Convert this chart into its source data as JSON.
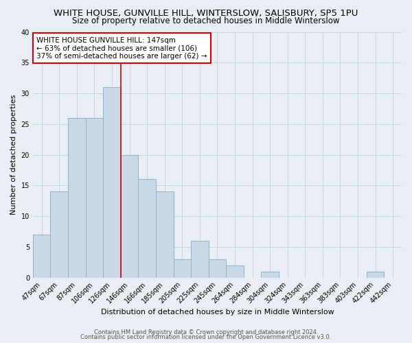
{
  "title": "WHITE HOUSE, GUNVILLE HILL, WINTERSLOW, SALISBURY, SP5 1PU",
  "subtitle": "Size of property relative to detached houses in Middle Winterslow",
  "xlabel": "Distribution of detached houses by size in Middle Winterslow",
  "ylabel": "Number of detached properties",
  "bar_labels": [
    "47sqm",
    "67sqm",
    "87sqm",
    "106sqm",
    "126sqm",
    "146sqm",
    "166sqm",
    "185sqm",
    "205sqm",
    "225sqm",
    "245sqm",
    "264sqm",
    "284sqm",
    "304sqm",
    "324sqm",
    "343sqm",
    "363sqm",
    "383sqm",
    "403sqm",
    "422sqm",
    "442sqm"
  ],
  "bar_heights": [
    7,
    14,
    26,
    26,
    31,
    20,
    16,
    14,
    3,
    6,
    3,
    2,
    0,
    1,
    0,
    0,
    0,
    0,
    0,
    1,
    0
  ],
  "bar_color": "#c9d9e8",
  "bar_edge_color": "#8ab4cc",
  "vline_index": 5,
  "vline_color": "#cc0000",
  "annotation_line1": "WHITE HOUSE GUNVILLE HILL: 147sqm",
  "annotation_line2": "← 63% of detached houses are smaller (106)",
  "annotation_line3": "37% of semi-detached houses are larger (62) →",
  "annotation_box_color": "#ffffff",
  "annotation_box_edge_color": "#cc0000",
  "ylim": [
    0,
    40
  ],
  "yticks": [
    0,
    5,
    10,
    15,
    20,
    25,
    30,
    35,
    40
  ],
  "grid_color": "#c8d4de",
  "bg_color": "#e8eef4",
  "footer1": "Contains HM Land Registry data © Crown copyright and database right 2024.",
  "footer2": "Contains public sector information licensed under the Open Government Licence v3.0.",
  "title_fontsize": 9.5,
  "subtitle_fontsize": 8.5,
  "xlabel_fontsize": 8,
  "ylabel_fontsize": 8,
  "tick_fontsize": 7,
  "annot_fontsize": 7.5,
  "footer_fontsize": 6
}
